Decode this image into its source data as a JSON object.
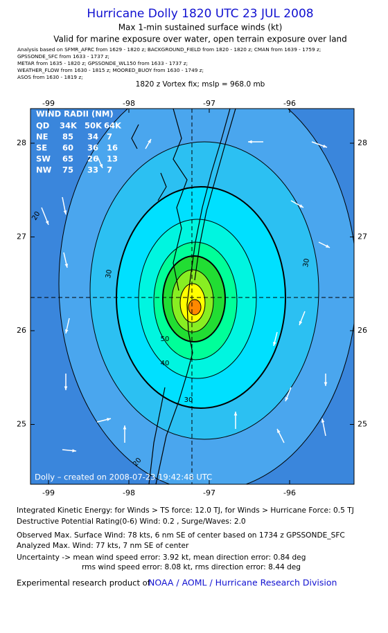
{
  "header": {
    "title": "Hurricane Dolly 1820 UTC 23 JUL 2008",
    "subtitle": "Max 1-min sustained surface winds (kt)",
    "validity": "Valid for marine exposure over water, open terrain exposure over land",
    "analysis_sources": [
      "Analysis based on  SFMR_AFRC from 1629 - 1820 z;  BACKGROUND_FIELD from 1820 - 1820 z;  CMAN from 1639 - 1759 z;",
      "GPSSONDE_SFC from 1633 - 1737 z;",
      "METAR from 1635 - 1820 z;  GPSSONDE_WL150 from 1633 - 1737 z;",
      "WEATHER_FLOW from 1630 - 1815 z;  MOORED_BUOY from 1630 - 1749 z;",
      "ASOS from 1630 - 1819 z;"
    ],
    "vortex_fix": "1820 z Vortex fix; mslp = 968.0 mb"
  },
  "map": {
    "lon_ticks": [
      -99,
      -98,
      -97,
      -96
    ],
    "lat_ticks": [
      28,
      27,
      26,
      25
    ],
    "wind_radii": {
      "heading": "WIND RADII (NM)",
      "columns": [
        "QD",
        "34K",
        "50K",
        "64K"
      ],
      "rows": [
        [
          "NE",
          85,
          34,
          7
        ],
        [
          "SE",
          60,
          36,
          16
        ],
        [
          "SW",
          65,
          26,
          13
        ],
        [
          "NW",
          75,
          33,
          7
        ]
      ]
    },
    "contour_labels": [
      20,
      30,
      30,
      40,
      30,
      50,
      20
    ],
    "credit": "Dolly – created on 2008-07-23 19:42:48 UTC"
  },
  "footer": {
    "lines": [
      "Integrated Kinetic Energy:  for Winds > TS force: 12.0 TJ,  for Winds > Hurricane Force: 0.5 TJ",
      "Destructive Potential Rating(0-6)   Wind: 0.2 , Surge/Waves: 2.0",
      "Observed Max. Surface Wind: 78 kts, 6 nm SE of center based on 1734 z GPSSONDE_SFC",
      "Analyzed Max. Wind: 77 kts, 7 nm SE of center",
      "Uncertainty -> mean wind speed error: 3.92 kt,   mean direction error: 0.84 deg",
      "rms wind speed error: 8.08 kt,   rms direction error: 8.44 deg"
    ],
    "product_prefix": "Experimental research product of",
    "product_org": "NOAA / AOML / Hurricane Research Division"
  }
}
